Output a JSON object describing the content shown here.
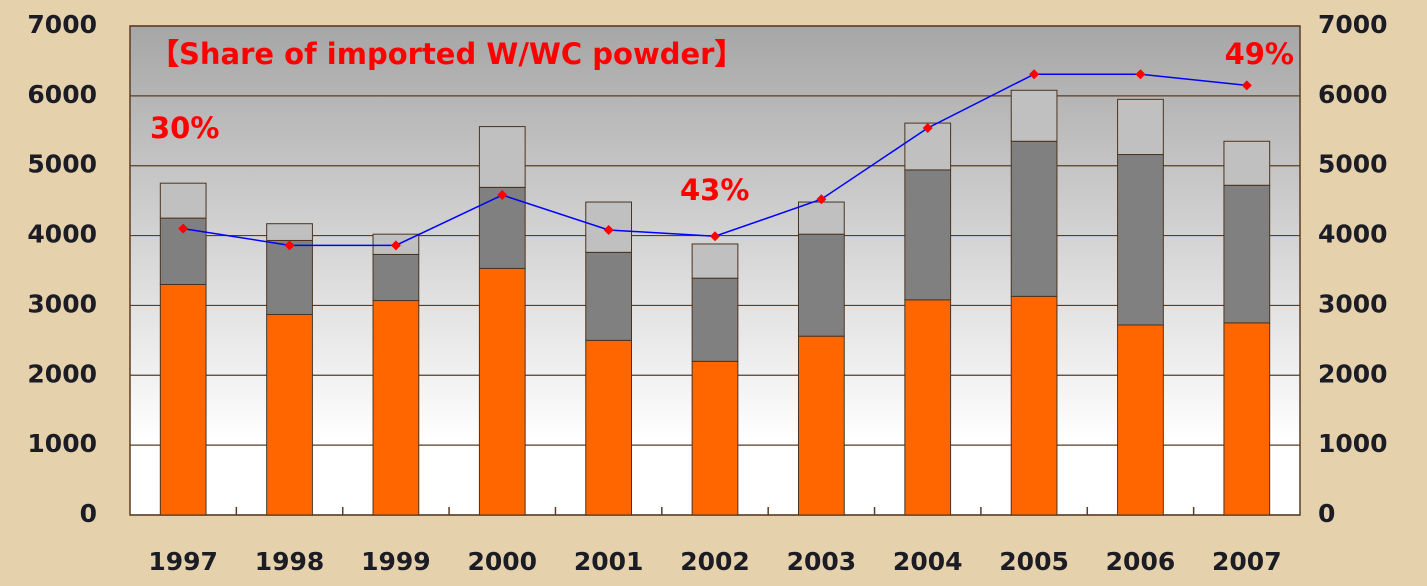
{
  "chart_data": {
    "type": "bar",
    "annotations": [
      "【Share of imported W/WC powder】",
      "30%",
      "43%",
      "49%"
    ],
    "categories": [
      "1997",
      "1998",
      "1999",
      "2000",
      "2001",
      "2002",
      "2003",
      "2004",
      "2005",
      "2006",
      "2007"
    ],
    "stacked": true,
    "series": [
      {
        "color": "#ff6600",
        "values": [
          3300,
          2870,
          3070,
          3530,
          2500,
          2200,
          2560,
          3080,
          3130,
          2720,
          2750
        ]
      },
      {
        "color": "#808080",
        "values": [
          950,
          1060,
          660,
          1160,
          1260,
          1190,
          1460,
          1860,
          2220,
          2440,
          1970
        ]
      },
      {
        "color": "#c0c0c0",
        "values": [
          500,
          240,
          290,
          870,
          720,
          490,
          460,
          670,
          730,
          790,
          630
        ]
      },
      {
        "type": "line",
        "axis": "y2",
        "color": "#0000ff",
        "marker_color": "#ff0000",
        "values": [
          4100,
          3860,
          3860,
          4580,
          4080,
          3990,
          4520,
          5540,
          6310,
          6310,
          6150
        ]
      }
    ],
    "ylim": [
      0,
      7000
    ],
    "yticks": [
      0,
      1000,
      2000,
      3000,
      4000,
      5000,
      6000,
      7000
    ],
    "y2lim": [
      0,
      7000
    ],
    "y2ticks": [
      0,
      1000,
      2000,
      3000,
      4000,
      5000,
      6000,
      7000
    ],
    "grid": true
  }
}
